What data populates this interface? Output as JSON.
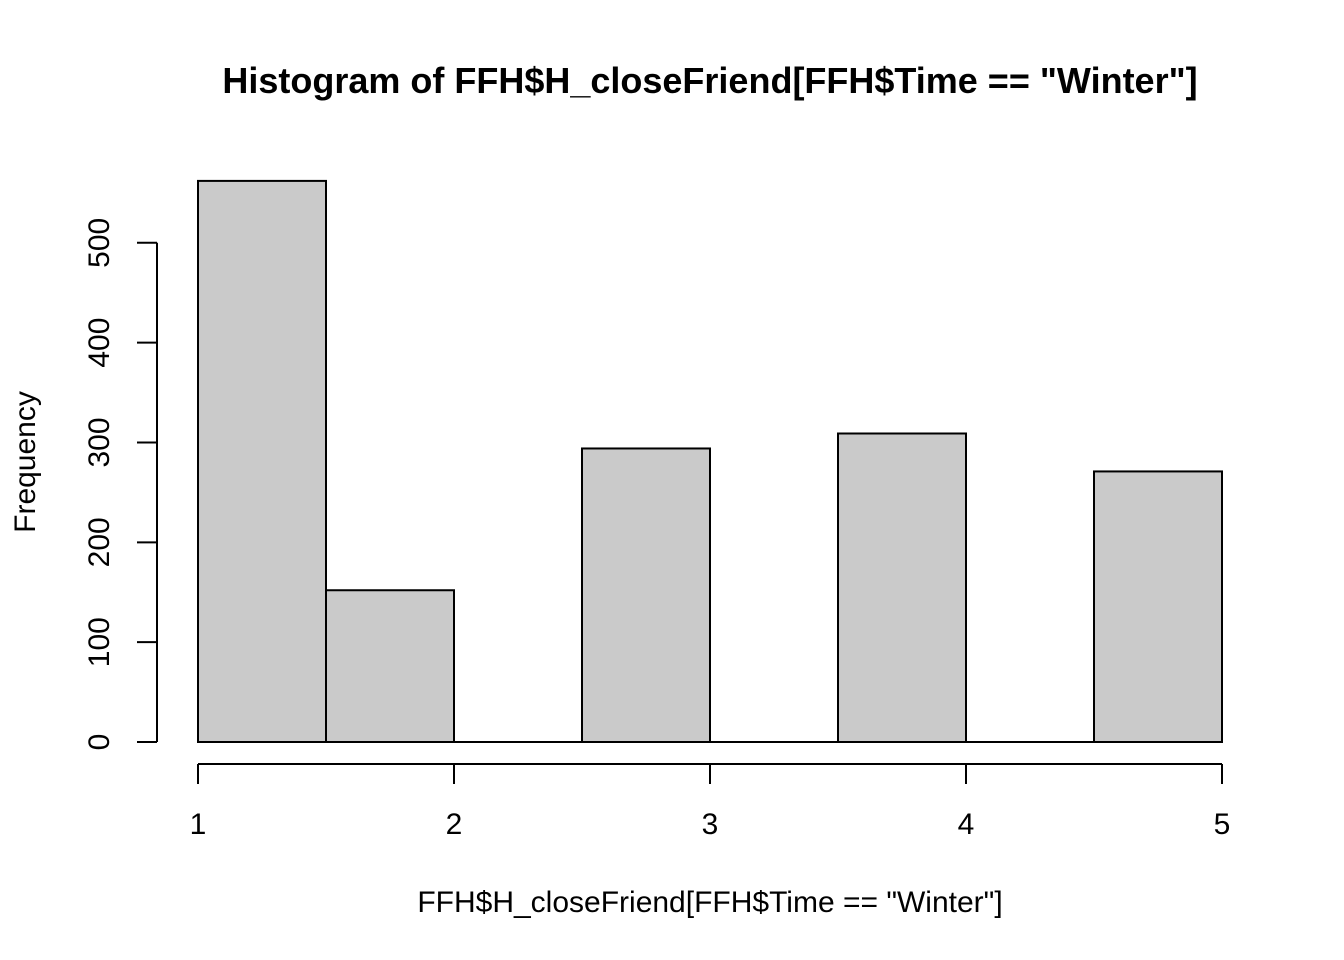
{
  "chart_data": {
    "type": "bar",
    "title": "Histogram of FFH$H_closeFriend[FFH$Time == \"Winter\"]",
    "xlabel": "FFH$H_closeFriend[FFH$Time == \"Winter\"]",
    "ylabel": "Frequency",
    "bins": [
      {
        "x0": 1.0,
        "x1": 1.5,
        "value": 562
      },
      {
        "x0": 1.5,
        "x1": 2.0,
        "value": 152
      },
      {
        "x0": 2.0,
        "x1": 2.5,
        "value": 0
      },
      {
        "x0": 2.5,
        "x1": 3.0,
        "value": 294
      },
      {
        "x0": 3.0,
        "x1": 3.5,
        "value": 0
      },
      {
        "x0": 3.5,
        "x1": 4.0,
        "value": 309
      },
      {
        "x0": 4.0,
        "x1": 4.5,
        "value": 0
      },
      {
        "x0": 4.5,
        "x1": 5.0,
        "value": 271
      }
    ],
    "xlim": [
      1,
      5
    ],
    "ylim": [
      0,
      562
    ],
    "x_ticks": [
      "1",
      "2",
      "3",
      "4",
      "5"
    ],
    "y_ticks": [
      "0",
      "100",
      "200",
      "300",
      "400",
      "500"
    ],
    "colors": {
      "bar_fill": "#cacaca",
      "bar_stroke": "#000000"
    },
    "grid": false
  }
}
